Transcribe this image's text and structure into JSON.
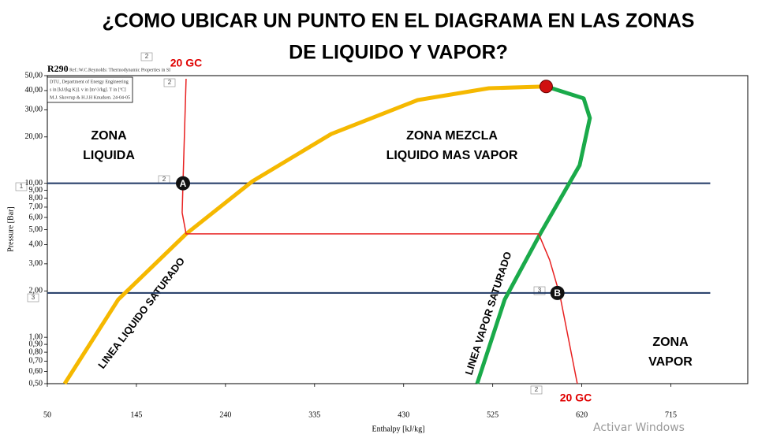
{
  "chart_data": {
    "type": "line",
    "title": "¿COMO UBICAR UN PUNTO EN EL DIAGRAMA EN LAS ZONAS",
    "subtitle": "DE LIQUIDO Y VAPOR?",
    "header": "R290",
    "reference": "Ref.:W.C.Reynolds: Thermodynamic Properties in SI",
    "info": [
      "DTU, Department of Energy Engineering",
      "s in [kJ/(kg K)]. v in [m^3/kg]. T in [ºC]",
      "M.J. Skovrup & H.J.H Knudsen. 24-04-05"
    ],
    "x_label": "Enthalpy [kJ/kg]",
    "y_label": "Pressure [Bar]",
    "y_log": true,
    "xlim": [
      50,
      797
    ],
    "ylim": [
      0.5,
      50
    ],
    "xticks": [
      50,
      145,
      240,
      335,
      430,
      525,
      620,
      715
    ],
    "yticks": [
      {
        "value": 50,
        "label": "50,00"
      },
      {
        "value": 40,
        "label": "40,00"
      },
      {
        "value": 30,
        "label": "30,00"
      },
      {
        "value": 20,
        "label": "20,00"
      },
      {
        "value": 10,
        "label": "10,00"
      },
      {
        "value": 9,
        "label": "9,00"
      },
      {
        "value": 8,
        "label": "8,00"
      },
      {
        "value": 7,
        "label": "7,00"
      },
      {
        "value": 6,
        "label": "6,00"
      },
      {
        "value": 5,
        "label": "5,00"
      },
      {
        "value": 4,
        "label": "4,00"
      },
      {
        "value": 3,
        "label": "3,00"
      },
      {
        "value": 2,
        "label": "2,00"
      },
      {
        "value": 1,
        "label": "1,00"
      },
      {
        "value": 0.9,
        "label": "0,90"
      },
      {
        "value": 0.8,
        "label": "0,80"
      },
      {
        "value": 0.7,
        "label": "0,70"
      },
      {
        "value": 0.6,
        "label": "0,60"
      },
      {
        "value": 0.5,
        "label": "0,50"
      }
    ],
    "series": [
      {
        "color": "#1f3864",
        "width": 2,
        "x": [
          50,
          757
        ],
        "values": [
          10,
          10
        ]
      },
      {
        "color": "#1f3864",
        "width": 2,
        "x": [
          50,
          757
        ],
        "values": [
          1.94,
          1.94
        ]
      },
      {
        "color": "#f5b800",
        "width": 5,
        "x": [
          68.5,
          125.7,
          198,
          268.7,
          352.8,
          445,
          521,
          582
        ],
        "values": [
          0.5,
          1.76,
          4.69,
          10.3,
          20.9,
          34.7,
          41.4,
          42.5
        ]
      },
      {
        "color": "#1aaa4a",
        "width": 5,
        "x": [
          582,
          622,
          628.6,
          617.7,
          575.6,
          537.8,
          508.4
        ],
        "values": [
          42.5,
          35.6,
          26.5,
          13.1,
          4.69,
          1.76,
          0.5
        ]
      },
      {
        "color": "#e82020",
        "width": 1.5,
        "x": [
          198,
          194.7,
          193.8,
          198,
          574,
          585.7,
          596.7,
          615.2
        ],
        "values": [
          47.7,
          10.1,
          6.44,
          4.69,
          4.69,
          3.18,
          1.87,
          0.5
        ]
      }
    ],
    "critical_point": {
      "x": 582,
      "y": 42.5,
      "color": "#d01010"
    },
    "points": [
      {
        "label": "A",
        "x": 194.7,
        "y": 10
      },
      {
        "label": "B",
        "x": 594,
        "y": 1.94
      }
    ],
    "zones": [
      [
        "ZONA",
        "LIQUIDA"
      ],
      [
        "ZONA MEZCLA",
        "LIQUIDO MAS VAPOR"
      ],
      [
        "ZONA",
        "VAPOR"
      ]
    ],
    "curve_labels": [
      "LINEA LIQUIDO SATURADO",
      "LINEA VAPOR SATURADO"
    ],
    "isotherm_labels": [
      "20 GC",
      "20 GC"
    ],
    "box_labels": [
      "2",
      "2",
      "2",
      "1",
      "3",
      "3",
      "2"
    ]
  },
  "watermark": "Activar Windows"
}
